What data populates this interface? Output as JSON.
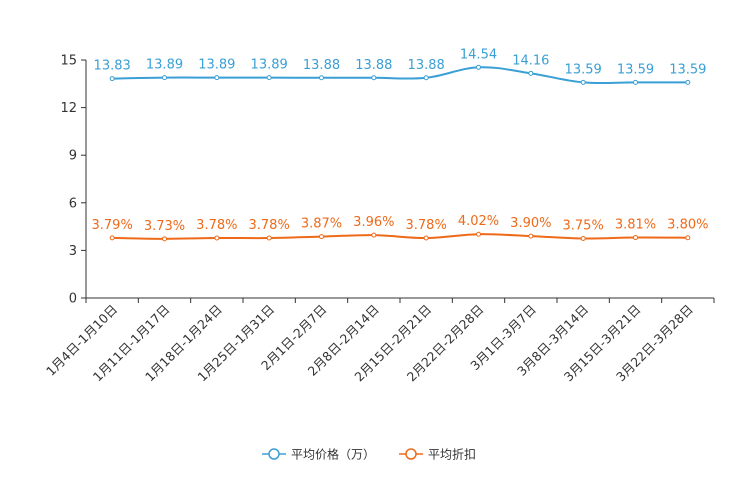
{
  "chart_data": {
    "type": "line",
    "categories": [
      "1月4日-1月10日",
      "1月11日-1月17日",
      "1月18日-1月24日",
      "1月25日-1月31日",
      "2月1日-2月7日",
      "2月8日-2月14日",
      "2月15日-2月21日",
      "2月22日-2月28日",
      "3月1日-3月7日",
      "3月8日-3月14日",
      "3月15日-3月21日",
      "3月22日-3月28日"
    ],
    "series": [
      {
        "name": "平均价格（万）",
        "color": "#3a9fd5",
        "values": [
          13.83,
          13.89,
          13.89,
          13.89,
          13.88,
          13.88,
          13.88,
          14.54,
          14.16,
          13.59,
          13.59,
          13.59
        ],
        "labels": [
          "13.83",
          "13.89",
          "13.89",
          "13.89",
          "13.88",
          "13.88",
          "13.88",
          "14.54",
          "14.16",
          "13.59",
          "13.59",
          "13.59"
        ]
      },
      {
        "name": "平均折扣",
        "color": "#ee6a1a",
        "values": [
          3.79,
          3.73,
          3.78,
          3.78,
          3.87,
          3.96,
          3.78,
          4.02,
          3.9,
          3.75,
          3.81,
          3.8
        ],
        "labels": [
          "3.79%",
          "3.73%",
          "3.78%",
          "3.78%",
          "3.87%",
          "3.96%",
          "3.78%",
          "4.02%",
          "3.90%",
          "3.75%",
          "3.81%",
          "3.80%"
        ]
      }
    ],
    "yticks": [
      "0",
      "3",
      "6",
      "9",
      "12",
      "15"
    ],
    "ylim": [
      0,
      15
    ],
    "legend_position": "bottom-center"
  }
}
